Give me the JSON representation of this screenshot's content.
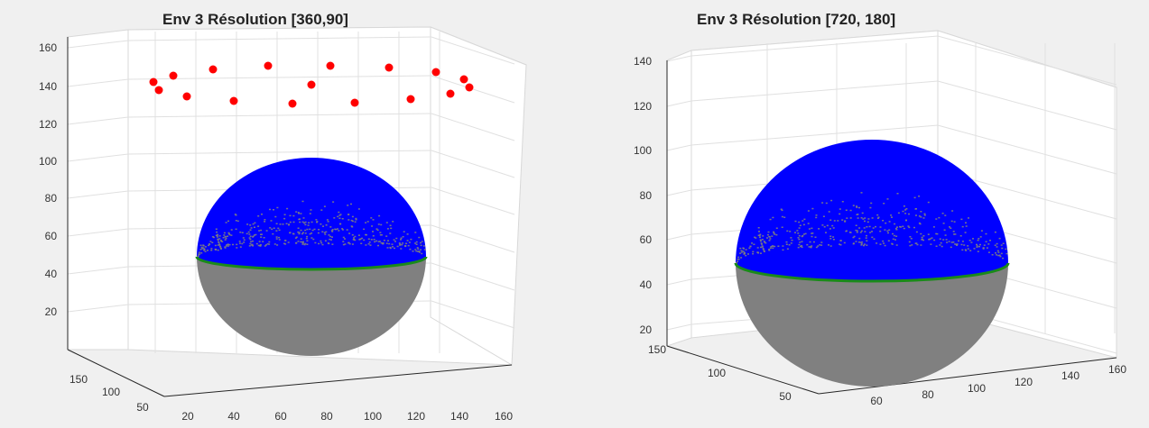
{
  "chart_data": [
    {
      "type": "scatter",
      "title": "Env 3 Résolution [360,90]",
      "z_ticks": [
        "20",
        "40",
        "60",
        "80",
        "100",
        "120",
        "140",
        "160"
      ],
      "x_ticks": [
        "20",
        "40",
        "60",
        "80",
        "100",
        "120",
        "140",
        "160"
      ],
      "y_ticks": [
        "50",
        "100",
        "150"
      ],
      "series": [
        {
          "kind": "upper-hemisphere-points",
          "color": "#0000ff"
        },
        {
          "kind": "lower-hemisphere-points",
          "color": "#808080"
        },
        {
          "kind": "horizon-ring",
          "color": "#1a8a1a"
        },
        {
          "kind": "sources",
          "color": "#ff0000",
          "count": 17,
          "z_approx": [
            142,
            138,
            146,
            135,
            149,
            132,
            150,
            131,
            141,
            151,
            131,
            150,
            133,
            148,
            136,
            144,
            140
          ]
        }
      ],
      "grid": true,
      "view": "3d"
    },
    {
      "type": "scatter",
      "title": "Env 3 Résolution [720, 180]",
      "z_ticks": [
        "20",
        "40",
        "60",
        "80",
        "100",
        "120",
        "140"
      ],
      "x_ticks": [
        "60",
        "80",
        "100",
        "120",
        "140",
        "160"
      ],
      "y_ticks": [
        "50",
        "100",
        "150"
      ],
      "series": [
        {
          "kind": "upper-hemisphere-points",
          "color": "#0000ff"
        },
        {
          "kind": "lower-hemisphere-points",
          "color": "#808080"
        },
        {
          "kind": "horizon-ring",
          "color": "#1a8a1a"
        }
      ],
      "grid": true,
      "view": "3d"
    }
  ]
}
